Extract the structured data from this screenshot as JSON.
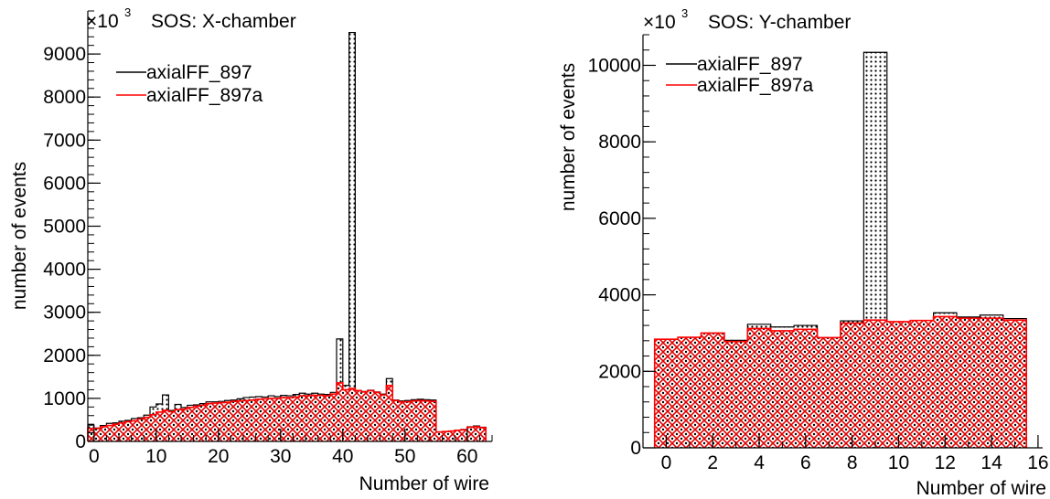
{
  "chart_data": [
    {
      "type": "bar",
      "title": "SOS: X-chamber",
      "exponent_label": "×10",
      "exponent_power": "3",
      "xlabel": "Number of wire",
      "ylabel": "number of events",
      "xlim": [
        -1,
        64
      ],
      "ylim": [
        0,
        10000
      ],
      "xticks": [
        0,
        10,
        20,
        30,
        40,
        50,
        60
      ],
      "yticks": [
        0,
        1000,
        2000,
        3000,
        4000,
        5000,
        6000,
        7000,
        8000,
        9000
      ],
      "legend": {
        "position": "top-left"
      },
      "x_start": -1,
      "bin_width": 1,
      "series": [
        {
          "name": "axialFF_897",
          "color": "#000000",
          "fill": "black-dots",
          "values": [
            380,
            310,
            370,
            420,
            430,
            470,
            490,
            530,
            550,
            610,
            800,
            870,
            1080,
            720,
            860,
            790,
            840,
            850,
            880,
            920,
            920,
            930,
            950,
            960,
            990,
            1020,
            1030,
            1040,
            1030,
            1060,
            1040,
            1070,
            1060,
            1090,
            1120,
            1100,
            1120,
            1100,
            1090,
            1140,
            2380,
            1300,
            9500,
            1180,
            1160,
            1190,
            1150,
            1100,
            1460,
            960,
            940,
            950,
            970,
            980,
            970,
            960,
            220,
            230,
            240,
            260,
            280,
            340,
            360,
            330
          ]
        },
        {
          "name": "axialFF_897a",
          "color": "#ff0000",
          "fill": "red-crosshatch",
          "values": [
            300,
            300,
            340,
            370,
            400,
            430,
            460,
            480,
            520,
            560,
            620,
            680,
            720,
            690,
            740,
            750,
            790,
            820,
            840,
            880,
            890,
            900,
            910,
            930,
            940,
            950,
            960,
            980,
            990,
            1000,
            1000,
            1020,
            1020,
            1030,
            1060,
            1060,
            1070,
            1070,
            1060,
            1100,
            1360,
            1200,
            1230,
            1180,
            1150,
            1180,
            1140,
            1080,
            1300,
            950,
            920,
            920,
            940,
            950,
            940,
            930,
            220,
            230,
            240,
            260,
            270,
            330,
            340,
            320
          ]
        }
      ]
    },
    {
      "type": "bar",
      "title": "SOS: Y-chamber",
      "exponent_label": "×10",
      "exponent_power": "3",
      "xlabel": "Number of wire",
      "ylabel": "number of events",
      "xlim": [
        -1,
        16.2
      ],
      "ylim": [
        0,
        10800
      ],
      "xticks": [
        0,
        2,
        4,
        6,
        8,
        10,
        12,
        14,
        16
      ],
      "yticks": [
        0,
        2000,
        4000,
        6000,
        8000,
        10000
      ],
      "legend": {
        "position": "top-left"
      },
      "x_start": -0.5,
      "bin_width": 1,
      "series": [
        {
          "name": "axialFF_897",
          "color": "#000000",
          "fill": "black-dots",
          "values": [
            2820,
            2870,
            3000,
            2810,
            3230,
            3160,
            3200,
            2880,
            3320,
            10340,
            3230,
            3290,
            3530,
            3420,
            3470,
            3380
          ]
        },
        {
          "name": "axialFF_897a",
          "color": "#ff0000",
          "fill": "red-crosshatch",
          "values": [
            2840,
            2890,
            3000,
            2780,
            3120,
            3060,
            3100,
            2880,
            3260,
            3340,
            3300,
            3330,
            3430,
            3390,
            3390,
            3340
          ]
        }
      ]
    }
  ]
}
